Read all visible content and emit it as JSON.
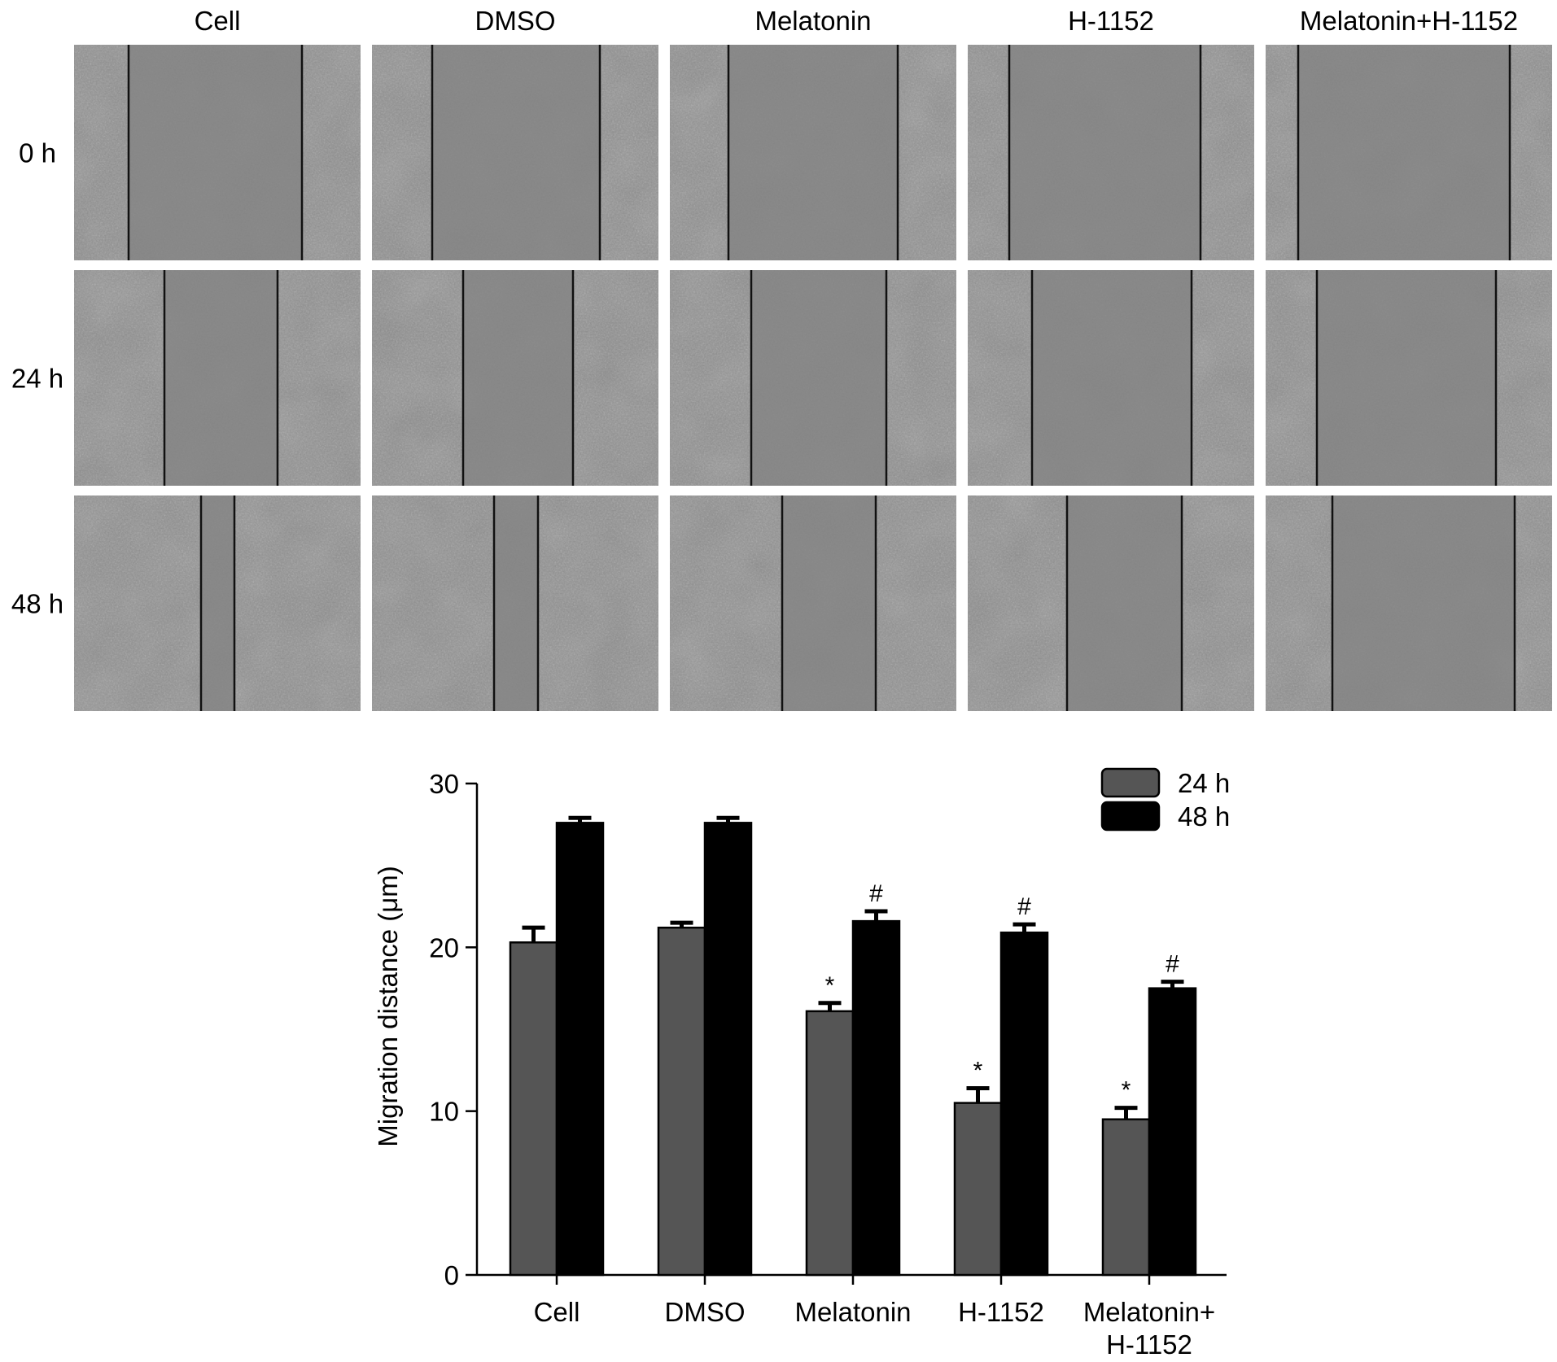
{
  "micrograph_grid": {
    "columns": [
      "Cell",
      "DMSO",
      "Melatonin",
      "H-1152",
      "Melatonin+H-1152"
    ],
    "rows": [
      "0 h",
      "24 h",
      "48 h"
    ]
  },
  "chart_data": {
    "type": "bar",
    "categories": [
      [
        "Cell"
      ],
      [
        "DMSO"
      ],
      [
        "Melatonin"
      ],
      [
        "H-1152"
      ],
      [
        "Melatonin+",
        "H-1152"
      ]
    ],
    "series": [
      {
        "name": "24 h",
        "values": [
          20.3,
          21.2,
          16.1,
          10.5,
          9.5
        ],
        "errors": [
          0.9,
          0.3,
          0.5,
          0.9,
          0.7
        ],
        "markers": [
          "",
          "",
          "*",
          "*",
          "*"
        ],
        "color": "#555555"
      },
      {
        "name": "48 h",
        "values": [
          27.6,
          27.6,
          21.6,
          20.9,
          17.5
        ],
        "errors": [
          0.3,
          0.3,
          0.6,
          0.5,
          0.4
        ],
        "markers": [
          "",
          "",
          "#",
          "#",
          "#"
        ],
        "color": "#000000"
      }
    ],
    "ylabel": "Migration distance  (μm)",
    "ylim": [
      0,
      30
    ],
    "yticks": [
      "0",
      "10",
      "20",
      "30"
    ],
    "legend_position": "top-right"
  }
}
